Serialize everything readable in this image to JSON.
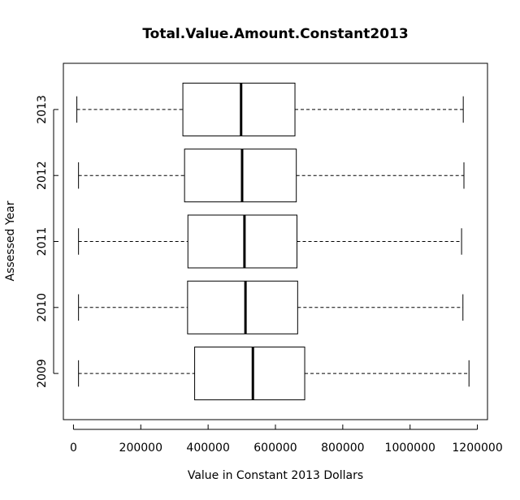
{
  "chart_data": {
    "type": "boxplot",
    "orientation": "horizontal",
    "title": "Total.Value.Amount.Constant2013",
    "xlabel": "Value in Constant 2013 Dollars",
    "ylabel": "Assessed Year",
    "xlim": [
      -30000,
      1230000
    ],
    "x_ticks": [
      0,
      200000,
      400000,
      600000,
      800000,
      1000000,
      1200000
    ],
    "x_tick_labels": [
      "0",
      "200000",
      "400000",
      "600000",
      "800000",
      "1000000",
      "1200000"
    ],
    "categories": [
      "2009",
      "2010",
      "2011",
      "2012",
      "2013"
    ],
    "boxes": [
      {
        "category": "2009",
        "whisker_low": 15000,
        "q1": 360000,
        "median": 533000,
        "q3": 687000,
        "whisker_high": 1175000
      },
      {
        "category": "2010",
        "whisker_low": 15000,
        "q1": 339000,
        "median": 511000,
        "q3": 666000,
        "whisker_high": 1157000
      },
      {
        "category": "2011",
        "whisker_low": 15000,
        "q1": 340000,
        "median": 508000,
        "q3": 664000,
        "whisker_high": 1153000
      },
      {
        "category": "2012",
        "whisker_low": 15000,
        "q1": 330000,
        "median": 501000,
        "q3": 662000,
        "whisker_high": 1160000
      },
      {
        "category": "2013",
        "whisker_low": 10000,
        "q1": 325000,
        "median": 498000,
        "q3": 658000,
        "whisker_high": 1158000
      }
    ],
    "grid": false,
    "legend": "none"
  }
}
